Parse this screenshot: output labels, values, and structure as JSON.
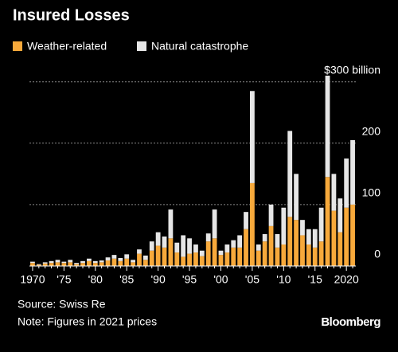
{
  "chart_data": {
    "type": "stacked-bar",
    "title": "Insured Losses",
    "source": "Source: Swiss Re",
    "note": "Note: Figures in 2021 prices",
    "brand": "Bloomberg",
    "categories": [
      "1970",
      null,
      null,
      null,
      null,
      "'75",
      null,
      null,
      null,
      null,
      "'80",
      null,
      null,
      null,
      null,
      "'85",
      null,
      null,
      null,
      null,
      "'90",
      null,
      null,
      null,
      null,
      "'95",
      null,
      null,
      null,
      null,
      "'00",
      null,
      null,
      null,
      null,
      "'05",
      null,
      null,
      null,
      null,
      "'10",
      null,
      null,
      null,
      null,
      "'15",
      null,
      null,
      null,
      null,
      "2020",
      null
    ],
    "series": [
      {
        "name": "Weather-related",
        "color": "#f7a93b",
        "values": [
          5,
          2,
          4,
          5,
          6,
          5,
          6,
          3,
          5,
          8,
          5,
          6,
          9,
          12,
          8,
          12,
          6,
          20,
          10,
          25,
          33,
          30,
          45,
          22,
          15,
          20,
          22,
          16,
          40,
          45,
          18,
          22,
          30,
          30,
          60,
          135,
          25,
          40,
          65,
          30,
          35,
          80,
          75,
          50,
          35,
          30,
          40,
          145,
          90,
          55,
          95,
          100
        ]
      },
      {
        "name": "Natural catastrophe",
        "color": "#e6e6e6",
        "values": [
          2,
          1,
          2,
          3,
          4,
          2,
          4,
          2,
          3,
          4,
          3,
          3,
          5,
          6,
          5,
          7,
          4,
          7,
          7,
          15,
          22,
          18,
          47,
          16,
          35,
          25,
          13,
          9,
          13,
          47,
          7,
          13,
          12,
          20,
          28,
          150,
          10,
          12,
          35,
          22,
          60,
          140,
          75,
          25,
          25,
          30,
          55,
          165,
          60,
          55,
          80,
          105
        ]
      }
    ],
    "ylim": [
      0,
      310
    ],
    "yticks": [
      0,
      100,
      200,
      {
        "value": 300,
        "label": "$300 billion"
      }
    ],
    "grid": true
  }
}
